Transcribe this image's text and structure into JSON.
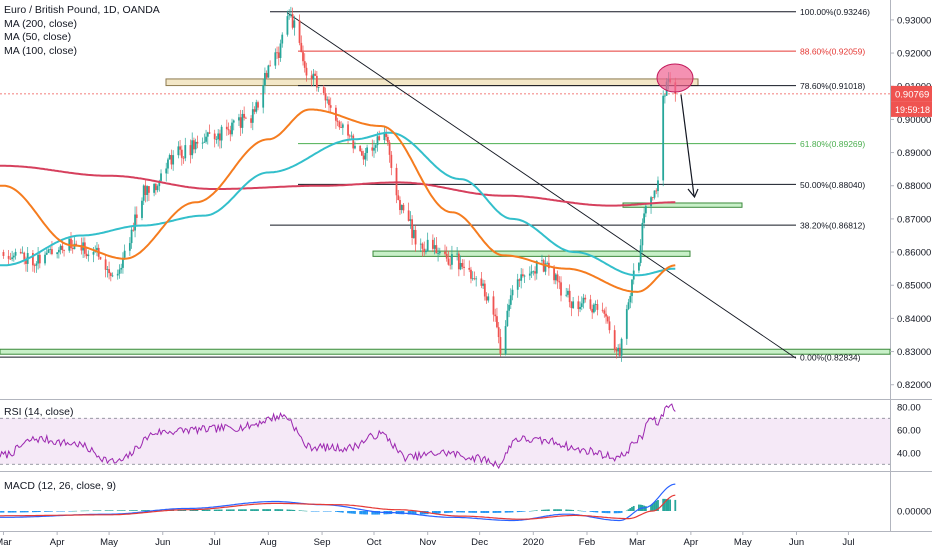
{
  "header": {
    "symbol_title": "Euro / British Pound, 1D, OANDA",
    "ma_labels": [
      "MA (200, close)",
      "MA (50, close)",
      "MA (100, close)"
    ]
  },
  "rsi_pane": {
    "label": "RSI (14, close)"
  },
  "macd_pane": {
    "label": "MACD (12, 26, close, 9)"
  },
  "price_badges": {
    "last_price": "0.90769",
    "countdown": "19:59:18"
  },
  "colors": {
    "up": "#26a69a",
    "down": "#ef5350",
    "ma200": "#d6405d",
    "ma50": "#f57c1f",
    "ma100": "#33bfcb",
    "rsi": "#9c27b0",
    "macd": "#2962ff",
    "signal": "#e53935",
    "hist_up": "#26a69a",
    "hist_down": "#2196f3",
    "fib_red": "#e53935",
    "fib_green": "#4caf50",
    "zone_tan": "#f3e7c7",
    "zone_green": "#c8f0c8",
    "circle": "#f06292"
  },
  "chart_data": {
    "type": "candlestick",
    "price_axis": {
      "ticks": [
        "0.93000",
        "0.92000",
        "0.91000",
        "0.90000",
        "0.89000",
        "0.88000",
        "0.87000",
        "0.86000",
        "0.85000",
        "0.84000",
        "0.83000",
        "0.82000"
      ],
      "range": [
        0.816,
        0.936
      ]
    },
    "time_axis": {
      "labels": [
        "Mar",
        "Apr",
        "May",
        "Jun",
        "Jul",
        "Aug",
        "Sep",
        "Oct",
        "Nov",
        "Dec",
        "2020",
        "Feb",
        "Mar",
        "Apr",
        "May",
        "Jun",
        "Jul"
      ]
    },
    "fib_levels": [
      {
        "label": "100.00%(0.93246)",
        "value": 0.93246,
        "color": "#131722"
      },
      {
        "label": "88.60%(0.92059)",
        "value": 0.92059,
        "color": "#e53935"
      },
      {
        "label": "78.60%(0.91018)",
        "value": 0.91018,
        "color": "#131722"
      },
      {
        "label": "61.80%(0.89269)",
        "value": 0.89269,
        "color": "#4caf50"
      },
      {
        "label": "50.00%(0.88040)",
        "value": 0.8804,
        "color": "#131722"
      },
      {
        "label": "38.20%(0.86812)",
        "value": 0.86812,
        "color": "#131722"
      },
      {
        "label": "0.00%(0.82834)",
        "value": 0.82834,
        "color": "#131722"
      }
    ],
    "last_price": 0.90769,
    "price_keypoints": [
      [
        "2019-03-01",
        0.86
      ],
      [
        "2019-03-20",
        0.858
      ],
      [
        "2019-04-05",
        0.862
      ],
      [
        "2019-04-25",
        0.86
      ],
      [
        "2019-05-03",
        0.853
      ],
      [
        "2019-05-25",
        0.88
      ],
      [
        "2019-06-10",
        0.89
      ],
      [
        "2019-06-30",
        0.895
      ],
      [
        "2019-07-20",
        0.9
      ],
      [
        "2019-08-05",
        0.918
      ],
      [
        "2019-08-12",
        0.932
      ],
      [
        "2019-08-25",
        0.913
      ],
      [
        "2019-09-10",
        0.9
      ],
      [
        "2019-09-25",
        0.89
      ],
      [
        "2019-10-07",
        0.895
      ],
      [
        "2019-10-15",
        0.875
      ],
      [
        "2019-10-28",
        0.862
      ],
      [
        "2019-11-15",
        0.858
      ],
      [
        "2019-12-01",
        0.85
      ],
      [
        "2019-12-10",
        0.842
      ],
      [
        "2019-12-13",
        0.83
      ],
      [
        "2019-12-20",
        0.85
      ],
      [
        "2020-01-05",
        0.856
      ],
      [
        "2020-01-25",
        0.845
      ],
      [
        "2020-02-10",
        0.842
      ],
      [
        "2020-02-19",
        0.83
      ],
      [
        "2020-03-01",
        0.856
      ],
      [
        "2020-03-06",
        0.873
      ],
      [
        "2020-03-12",
        0.88
      ],
      [
        "2020-03-16",
        0.905
      ],
      [
        "2020-03-19",
        0.913
      ],
      [
        "2020-03-23",
        0.9077
      ]
    ],
    "ma200_keypoints": [
      [
        "2019-03-01",
        0.886
      ],
      [
        "2019-05-01",
        0.883
      ],
      [
        "2019-07-01",
        0.879
      ],
      [
        "2019-09-01",
        0.88
      ],
      [
        "2019-10-15",
        0.881
      ],
      [
        "2019-12-15",
        0.877
      ],
      [
        "2020-02-15",
        0.874
      ],
      [
        "2020-03-23",
        0.875
      ]
    ],
    "ma50_keypoints": [
      [
        "2019-03-01",
        0.88
      ],
      [
        "2019-04-10",
        0.862
      ],
      [
        "2019-05-10",
        0.858
      ],
      [
        "2019-06-20",
        0.875
      ],
      [
        "2019-08-01",
        0.894
      ],
      [
        "2019-08-25",
        0.903
      ],
      [
        "2019-10-05",
        0.898
      ],
      [
        "2019-11-15",
        0.872
      ],
      [
        "2019-12-15",
        0.859
      ],
      [
        "2020-01-20",
        0.855
      ],
      [
        "2020-03-01",
        0.848
      ],
      [
        "2020-03-23",
        0.856
      ]
    ],
    "ma100_keypoints": [
      [
        "2019-03-01",
        0.856
      ],
      [
        "2019-04-15",
        0.865
      ],
      [
        "2019-05-20",
        0.868
      ],
      [
        "2019-06-25",
        0.871
      ],
      [
        "2019-08-01",
        0.884
      ],
      [
        "2019-09-20",
        0.894
      ],
      [
        "2019-10-10",
        0.896
      ],
      [
        "2019-11-20",
        0.882
      ],
      [
        "2019-12-20",
        0.87
      ],
      [
        "2020-01-25",
        0.86
      ],
      [
        "2020-03-01",
        0.853
      ],
      [
        "2020-03-23",
        0.855
      ]
    ],
    "rsi": {
      "ticks": [
        "80.00",
        "60.00",
        "40.00"
      ],
      "range": [
        25,
        85
      ],
      "band": [
        30,
        70
      ],
      "keypoints": [
        [
          "2019-03-01",
          38
        ],
        [
          "2019-03-20",
          52
        ],
        [
          "2019-04-10",
          48
        ],
        [
          "2019-05-05",
          32
        ],
        [
          "2019-05-30",
          58
        ],
        [
          "2019-06-20",
          60
        ],
        [
          "2019-07-15",
          62
        ],
        [
          "2019-08-10",
          72
        ],
        [
          "2019-08-25",
          45
        ],
        [
          "2019-09-15",
          44
        ],
        [
          "2019-10-05",
          56
        ],
        [
          "2019-10-20",
          36
        ],
        [
          "2019-11-10",
          40
        ],
        [
          "2019-12-01",
          35
        ],
        [
          "2019-12-12",
          30
        ],
        [
          "2019-12-22",
          52
        ],
        [
          "2020-01-10",
          50
        ],
        [
          "2020-01-30",
          42
        ],
        [
          "2020-02-19",
          36
        ],
        [
          "2020-03-03",
          52
        ],
        [
          "2020-03-08",
          70
        ],
        [
          "2020-03-13",
          66
        ],
        [
          "2020-03-19",
          82
        ],
        [
          "2020-03-23",
          78
        ]
      ]
    },
    "macd": {
      "ticks": [
        "0.00000"
      ],
      "range": [
        -0.006,
        0.012
      ],
      "keypoints_macd": [
        [
          "2019-03-01",
          -0.002
        ],
        [
          "2019-05-01",
          -0.001
        ],
        [
          "2019-06-15",
          0.0008
        ],
        [
          "2019-08-05",
          0.003
        ],
        [
          "2019-09-01",
          0.002
        ],
        [
          "2019-10-10",
          -0.0005
        ],
        [
          "2019-11-15",
          -0.002
        ],
        [
          "2019-12-20",
          -0.003
        ],
        [
          "2020-01-20",
          -0.001
        ],
        [
          "2020-02-20",
          -0.003
        ],
        [
          "2020-03-05",
          0.001
        ],
        [
          "2020-03-23",
          0.0085
        ]
      ],
      "keypoints_signal": [
        [
          "2019-03-01",
          -0.0015
        ],
        [
          "2019-05-01",
          -0.0012
        ],
        [
          "2019-06-15",
          0.0004
        ],
        [
          "2019-08-05",
          0.0024
        ],
        [
          "2019-09-10",
          0.002
        ],
        [
          "2019-10-15",
          0.0004
        ],
        [
          "2019-11-20",
          -0.0016
        ],
        [
          "2019-12-25",
          -0.0026
        ],
        [
          "2020-01-25",
          -0.0014
        ],
        [
          "2020-02-25",
          -0.0024
        ],
        [
          "2020-03-10",
          0.0
        ],
        [
          "2020-03-23",
          0.005
        ]
      ]
    }
  }
}
